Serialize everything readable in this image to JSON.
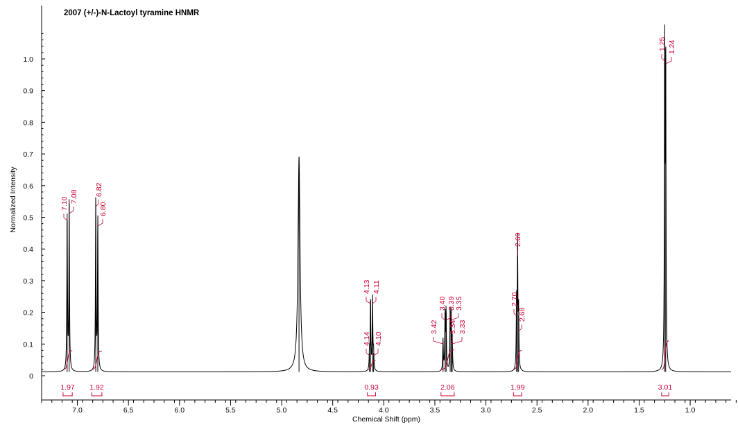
{
  "chart_data": {
    "type": "line",
    "title": "2007   (+/-)-N-Lactoyl tyramine HNMR",
    "xlabel": "Chemical Shift (ppm)",
    "ylabel": "Normalized Intensity",
    "xlim": [
      7.35,
      0.6
    ],
    "ylim": [
      0,
      1.1
    ],
    "x_ticks": [
      "7.0",
      "6.5",
      "6.0",
      "5.5",
      "5.0",
      "4.5",
      "4.0",
      "3.5",
      "3.0",
      "2.5",
      "2.0",
      "1.5",
      "1.0"
    ],
    "y_ticks": [
      "0",
      "0.1",
      "0.2",
      "0.3",
      "0.4",
      "0.5",
      "0.6",
      "0.7",
      "0.8",
      "0.9",
      "1.0"
    ],
    "peaks": [
      {
        "x": 7.1,
        "y": 0.5
      },
      {
        "x": 7.08,
        "y": 0.53
      },
      {
        "x": 6.82,
        "y": 0.55
      },
      {
        "x": 6.8,
        "y": 0.49
      },
      {
        "x": 4.83,
        "y": 0.68
      },
      {
        "x": 4.14,
        "y": 0.06
      },
      {
        "x": 4.13,
        "y": 0.23
      },
      {
        "x": 4.11,
        "y": 0.23
      },
      {
        "x": 4.1,
        "y": 0.06
      },
      {
        "x": 3.42,
        "y": 0.1
      },
      {
        "x": 3.4,
        "y": 0.18
      },
      {
        "x": 3.39,
        "y": 0.19
      },
      {
        "x": 3.35,
        "y": 0.19
      },
      {
        "x": 3.34,
        "y": 0.17
      },
      {
        "x": 3.33,
        "y": 0.1
      },
      {
        "x": 2.7,
        "y": 0.22
      },
      {
        "x": 2.69,
        "y": 0.4
      },
      {
        "x": 2.68,
        "y": 0.18
      },
      {
        "x": 1.25,
        "y": 0.99
      },
      {
        "x": 1.24,
        "y": 0.99
      }
    ],
    "peak_labels": [
      {
        "group": "aromatic-1",
        "labels": [
          "7.10",
          "7.08"
        ]
      },
      {
        "group": "aromatic-2",
        "labels": [
          "6.82",
          "6.80"
        ]
      },
      {
        "group": "ch-upper",
        "labels": [
          "4.13",
          "4.11"
        ]
      },
      {
        "group": "ch-lower",
        "labels": [
          "4.14",
          "4.10"
        ]
      },
      {
        "group": "nch2",
        "labels": [
          "3.42",
          "3.40",
          "3.39",
          "3.35",
          "3.34",
          "3.33"
        ]
      },
      {
        "group": "ch2",
        "labels": [
          "2.70",
          "2.69",
          "2.68"
        ]
      },
      {
        "group": "ch3",
        "labels": [
          "1.25",
          "1.24"
        ]
      }
    ],
    "integrals": [
      {
        "from": 7.14,
        "to": 7.05,
        "value": "1.97"
      },
      {
        "from": 6.86,
        "to": 6.76,
        "value": "1.92"
      },
      {
        "from": 4.16,
        "to": 4.08,
        "value": "0.93"
      },
      {
        "from": 3.44,
        "to": 3.31,
        "value": "2.06"
      },
      {
        "from": 2.73,
        "to": 2.65,
        "value": "1.99"
      },
      {
        "from": 1.28,
        "to": 1.21,
        "value": "3.01"
      }
    ],
    "grid": false,
    "colors": {
      "spectrum": "#000000",
      "annotation": "#cc0033"
    }
  }
}
